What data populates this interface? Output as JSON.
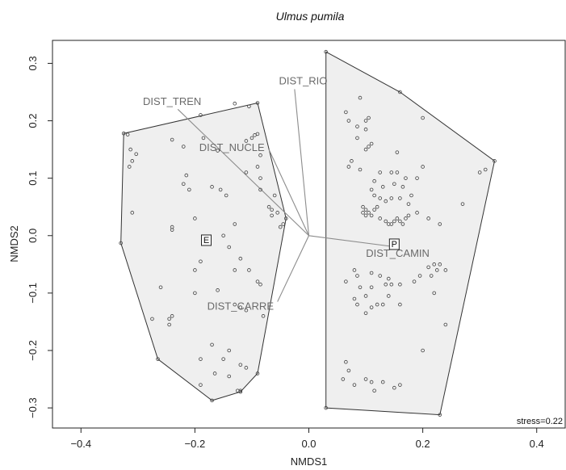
{
  "chart_data": {
    "type": "scatter",
    "title": "Ulmus pumila",
    "xlabel": "NMDS1",
    "ylabel": "NMDS2",
    "xlim": [
      -0.45,
      0.45
    ],
    "ylim": [
      -0.335,
      0.34
    ],
    "x_ticks": [
      -0.4,
      -0.2,
      0.0,
      0.2,
      0.4
    ],
    "x_tick_labels": [
      "−0.4",
      "−0.2",
      "0.0",
      "0.2",
      "0.4"
    ],
    "y_ticks": [
      -0.3,
      -0.2,
      -0.1,
      0.0,
      0.1,
      0.2,
      0.3
    ],
    "y_tick_labels": [
      "−0.3",
      "−0.2",
      "−0.1",
      "0.0",
      "0.1",
      "0.2",
      "0.3"
    ],
    "grid": false,
    "stress_label": "stress=0.22",
    "colors": {
      "hull_fill": "#efefef",
      "hull_stroke": "#333333",
      "points": "#444444",
      "vectors": "#8c8c8c",
      "vector_labels": "#6a6a6a"
    },
    "groups": [
      {
        "label": "E",
        "centroid": [
          -0.18,
          -0.008
        ],
        "hull": [
          [
            -0.325,
            0.178
          ],
          [
            -0.09,
            0.231
          ],
          [
            -0.04,
            0.03
          ],
          [
            -0.09,
            -0.24
          ],
          [
            -0.12,
            -0.272
          ],
          [
            -0.17,
            -0.287
          ],
          [
            -0.265,
            -0.215
          ],
          [
            -0.33,
            -0.013
          ]
        ],
        "points": [
          [
            -0.318,
            0.176
          ],
          [
            -0.313,
            0.15
          ],
          [
            -0.31,
            0.13
          ],
          [
            -0.303,
            0.142
          ],
          [
            -0.315,
            0.12
          ],
          [
            -0.31,
            0.04
          ],
          [
            -0.24,
            0.167
          ],
          [
            -0.19,
            0.21
          ],
          [
            -0.22,
            0.155
          ],
          [
            -0.185,
            0.17
          ],
          [
            -0.16,
            0.148
          ],
          [
            -0.13,
            0.23
          ],
          [
            -0.105,
            0.225
          ],
          [
            -0.09,
            0.177
          ],
          [
            -0.095,
            0.175
          ],
          [
            -0.1,
            0.17
          ],
          [
            -0.11,
            0.165
          ],
          [
            -0.085,
            0.14
          ],
          [
            -0.09,
            0.12
          ],
          [
            -0.085,
            0.1
          ],
          [
            -0.11,
            0.11
          ],
          [
            -0.215,
            0.105
          ],
          [
            -0.22,
            0.09
          ],
          [
            -0.21,
            0.08
          ],
          [
            -0.17,
            0.085
          ],
          [
            -0.155,
            0.08
          ],
          [
            -0.145,
            0.07
          ],
          [
            -0.06,
            0.07
          ],
          [
            -0.085,
            0.08
          ],
          [
            -0.07,
            0.05
          ],
          [
            -0.065,
            0.045
          ],
          [
            -0.055,
            0.04
          ],
          [
            -0.065,
            0.035
          ],
          [
            -0.045,
            0.02
          ],
          [
            -0.05,
            0.015
          ],
          [
            -0.2,
            0.03
          ],
          [
            -0.24,
            0.015
          ],
          [
            -0.24,
            0.01
          ],
          [
            -0.13,
            0.02
          ],
          [
            -0.15,
            0.0
          ],
          [
            -0.19,
            -0.045
          ],
          [
            -0.2,
            -0.06
          ],
          [
            -0.14,
            -0.02
          ],
          [
            -0.12,
            -0.04
          ],
          [
            -0.13,
            -0.06
          ],
          [
            -0.09,
            -0.08
          ],
          [
            -0.085,
            -0.085
          ],
          [
            -0.105,
            -0.06
          ],
          [
            -0.26,
            -0.09
          ],
          [
            -0.16,
            -0.095
          ],
          [
            -0.2,
            -0.1
          ],
          [
            -0.13,
            -0.12
          ],
          [
            -0.12,
            -0.125
          ],
          [
            -0.11,
            -0.13
          ],
          [
            -0.08,
            -0.14
          ],
          [
            -0.24,
            -0.14
          ],
          [
            -0.245,
            -0.145
          ],
          [
            -0.245,
            -0.155
          ],
          [
            -0.275,
            -0.145
          ],
          [
            -0.17,
            -0.19
          ],
          [
            -0.19,
            -0.215
          ],
          [
            -0.14,
            -0.2
          ],
          [
            -0.15,
            -0.215
          ],
          [
            -0.12,
            -0.225
          ],
          [
            -0.165,
            -0.24
          ],
          [
            -0.14,
            -0.245
          ],
          [
            -0.11,
            -0.23
          ],
          [
            -0.19,
            -0.26
          ],
          [
            -0.12,
            -0.27
          ],
          [
            -0.125,
            -0.27
          ]
        ]
      },
      {
        "label": "P",
        "centroid": [
          0.15,
          -0.015
        ],
        "hull": [
          [
            0.03,
            0.32
          ],
          [
            0.16,
            0.25
          ],
          [
            0.326,
            0.13
          ],
          [
            0.23,
            -0.312
          ],
          [
            0.03,
            -0.3
          ]
        ],
        "points": [
          [
            0.065,
            0.215
          ],
          [
            0.09,
            0.24
          ],
          [
            0.1,
            0.2
          ],
          [
            0.1,
            0.185
          ],
          [
            0.085,
            0.19
          ],
          [
            0.105,
            0.205
          ],
          [
            0.2,
            0.205
          ],
          [
            0.07,
            0.2
          ],
          [
            0.085,
            0.17
          ],
          [
            0.1,
            0.15
          ],
          [
            0.105,
            0.155
          ],
          [
            0.11,
            0.16
          ],
          [
            0.155,
            0.145
          ],
          [
            0.075,
            0.13
          ],
          [
            0.07,
            0.12
          ],
          [
            0.09,
            0.115
          ],
          [
            0.125,
            0.11
          ],
          [
            0.145,
            0.11
          ],
          [
            0.155,
            0.11
          ],
          [
            0.2,
            0.12
          ],
          [
            0.115,
            0.095
          ],
          [
            0.13,
            0.085
          ],
          [
            0.15,
            0.09
          ],
          [
            0.17,
            0.1
          ],
          [
            0.19,
            0.1
          ],
          [
            0.11,
            0.08
          ],
          [
            0.115,
            0.07
          ],
          [
            0.125,
            0.065
          ],
          [
            0.135,
            0.06
          ],
          [
            0.145,
            0.065
          ],
          [
            0.16,
            0.065
          ],
          [
            0.175,
            0.055
          ],
          [
            0.18,
            0.07
          ],
          [
            0.165,
            0.085
          ],
          [
            0.095,
            0.05
          ],
          [
            0.1,
            0.045
          ],
          [
            0.105,
            0.04
          ],
          [
            0.095,
            0.04
          ],
          [
            0.1,
            0.035
          ],
          [
            0.11,
            0.035
          ],
          [
            0.115,
            0.045
          ],
          [
            0.12,
            0.05
          ],
          [
            0.125,
            0.03
          ],
          [
            0.135,
            0.025
          ],
          [
            0.14,
            0.02
          ],
          [
            0.145,
            0.02
          ],
          [
            0.15,
            0.025
          ],
          [
            0.155,
            0.03
          ],
          [
            0.16,
            0.025
          ],
          [
            0.165,
            0.02
          ],
          [
            0.17,
            0.03
          ],
          [
            0.175,
            0.035
          ],
          [
            0.19,
            0.04
          ],
          [
            0.21,
            0.03
          ],
          [
            0.23,
            0.02
          ],
          [
            0.3,
            0.11
          ],
          [
            0.31,
            0.115
          ],
          [
            0.27,
            0.055
          ],
          [
            0.08,
            -0.06
          ],
          [
            0.085,
            -0.07
          ],
          [
            0.11,
            -0.065
          ],
          [
            0.125,
            -0.07
          ],
          [
            0.14,
            -0.075
          ],
          [
            0.145,
            -0.085
          ],
          [
            0.16,
            -0.085
          ],
          [
            0.185,
            -0.08
          ],
          [
            0.195,
            -0.07
          ],
          [
            0.21,
            -0.055
          ],
          [
            0.22,
            -0.05
          ],
          [
            0.225,
            -0.06
          ],
          [
            0.23,
            -0.05
          ],
          [
            0.24,
            -0.06
          ],
          [
            0.215,
            -0.07
          ],
          [
            0.065,
            -0.08
          ],
          [
            0.09,
            -0.09
          ],
          [
            0.11,
            -0.09
          ],
          [
            0.135,
            -0.085
          ],
          [
            0.08,
            -0.11
          ],
          [
            0.085,
            -0.12
          ],
          [
            0.1,
            -0.105
          ],
          [
            0.11,
            -0.125
          ],
          [
            0.12,
            -0.12
          ],
          [
            0.13,
            -0.12
          ],
          [
            0.14,
            -0.105
          ],
          [
            0.1,
            -0.135
          ],
          [
            0.16,
            -0.12
          ],
          [
            0.22,
            -0.1
          ],
          [
            0.24,
            -0.155
          ],
          [
            0.2,
            -0.2
          ],
          [
            0.065,
            -0.22
          ],
          [
            0.06,
            -0.25
          ],
          [
            0.07,
            -0.235
          ],
          [
            0.08,
            -0.26
          ],
          [
            0.1,
            -0.25
          ],
          [
            0.11,
            -0.255
          ],
          [
            0.115,
            -0.27
          ],
          [
            0.13,
            -0.255
          ],
          [
            0.15,
            -0.265
          ],
          [
            0.16,
            -0.26
          ]
        ]
      }
    ],
    "vectors": [
      {
        "label": "DIST_RIO",
        "end": [
          -0.025,
          0.255
        ],
        "label_pos": [
          -0.01,
          0.268
        ]
      },
      {
        "label": "DIST_TREN",
        "end": [
          -0.23,
          0.22
        ],
        "label_pos": [
          -0.24,
          0.232
        ]
      },
      {
        "label": "DIST_NUCLE",
        "end": [
          -0.07,
          0.15
        ],
        "label_pos": [
          -0.135,
          0.152
        ]
      },
      {
        "label": "DIST_CAMIN",
        "end": [
          0.155,
          -0.02
        ],
        "label_pos": [
          0.156,
          -0.032
        ]
      },
      {
        "label": "DIST_CARRE",
        "end": [
          -0.055,
          -0.115
        ],
        "label_pos": [
          -0.12,
          -0.124
        ]
      }
    ]
  }
}
